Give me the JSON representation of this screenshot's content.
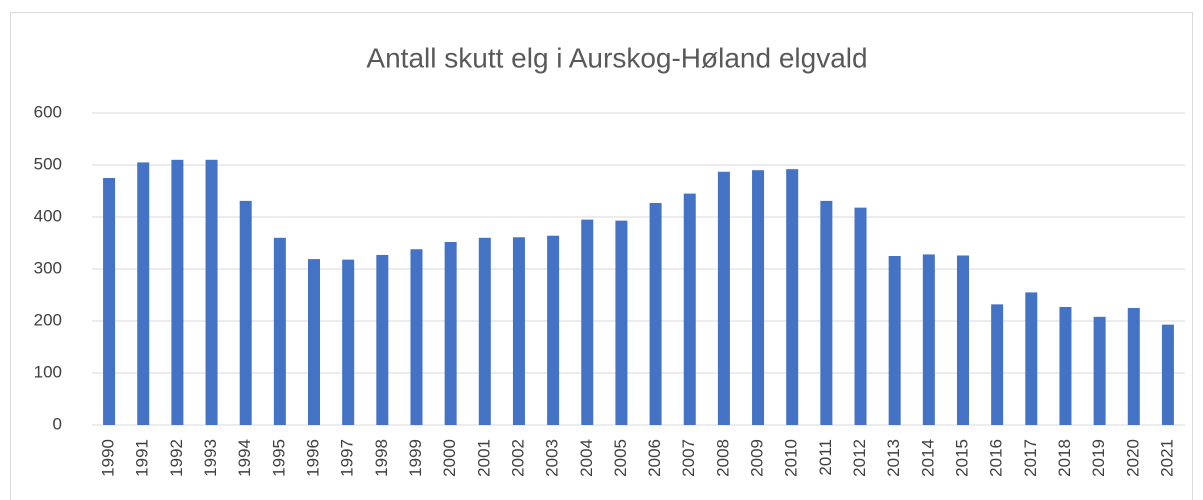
{
  "chart_data": {
    "type": "bar",
    "title": "Antall skutt elg i Aurskog-Høland elgvald",
    "categories": [
      "1990",
      "1991",
      "1992",
      "1993",
      "1994",
      "1995",
      "1996",
      "1997",
      "1998",
      "1999",
      "2000",
      "2001",
      "2002",
      "2003",
      "2004",
      "2005",
      "2006",
      "2007",
      "2008",
      "2009",
      "2010",
      "2011",
      "2012",
      "2013",
      "2014",
      "2015",
      "2016",
      "2017",
      "2018",
      "2019",
      "2020",
      "2021"
    ],
    "values": [
      475,
      505,
      510,
      510,
      431,
      360,
      319,
      318,
      327,
      338,
      352,
      360,
      361,
      364,
      395,
      393,
      427,
      445,
      487,
      490,
      492,
      431,
      418,
      325,
      328,
      326,
      232,
      255,
      227,
      208,
      225,
      193
    ],
    "color": "#4472c4",
    "ylim": [
      0,
      600
    ],
    "yticks": [
      0,
      100,
      200,
      300,
      400,
      500,
      600
    ],
    "grid": true
  }
}
